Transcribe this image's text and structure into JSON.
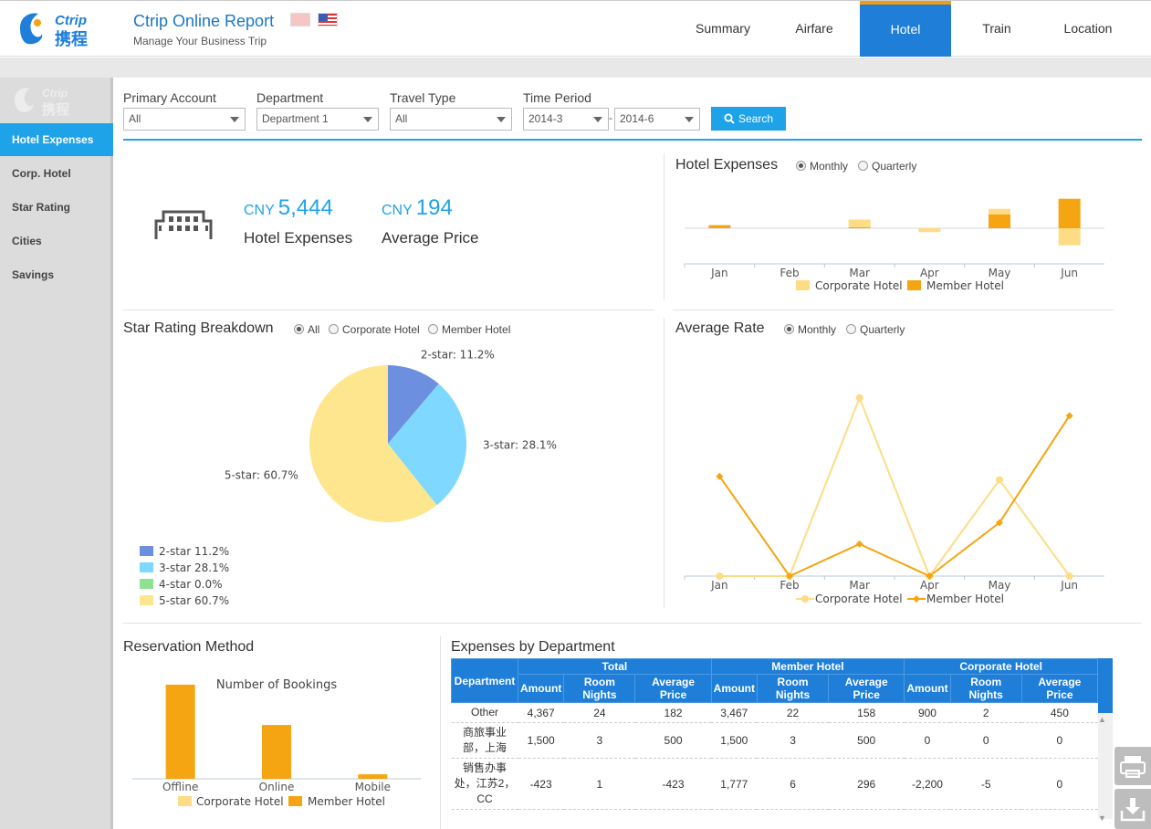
{
  "header": {
    "logo_text": "Ctrip 携程",
    "title": "Ctrip Online Report",
    "subtitle": "Manage Your Business Trip",
    "nav": [
      "Summary",
      "Airfare",
      "Hotel",
      "Train",
      "Location"
    ],
    "active_nav": "Hotel"
  },
  "sidebar": {
    "items": [
      "Hotel Expenses",
      "Corp. Hotel",
      "Star Rating",
      "Cities",
      "Savings"
    ],
    "active": "Hotel Expenses"
  },
  "filters": {
    "primary_account": {
      "label": "Primary Account",
      "value": "All"
    },
    "department": {
      "label": "Department",
      "value": "Department 1"
    },
    "travel_type": {
      "label": "Travel Type",
      "value": "All"
    },
    "time_period": {
      "label": "Time Period",
      "from": "2014-3",
      "to": "2014-6",
      "separator": "-"
    },
    "search_label": "Search"
  },
  "kpi": {
    "expenses": {
      "currency": "CNY",
      "value": "5,444",
      "label": "Hotel Expenses"
    },
    "avg_price": {
      "currency": "CNY",
      "value": "194",
      "label": "Average Price"
    }
  },
  "hotel_expenses": {
    "title": "Hotel Expenses",
    "options": [
      "Monthly",
      "Quarterly"
    ],
    "selected": "Monthly"
  },
  "star_rating": {
    "title": "Star Rating Breakdown",
    "options": [
      "All",
      "Corporate Hotel",
      "Member Hotel"
    ],
    "selected": "All"
  },
  "average_rate": {
    "title": "Average Rate",
    "options": [
      "Monthly",
      "Quarterly"
    ],
    "selected": "Monthly"
  },
  "reservation": {
    "title": "Reservation Method"
  },
  "expenses_by_dept": {
    "title": "Expenses by Department",
    "group_headers": [
      "Department",
      "Total",
      "Member Hotel",
      "Corporate Hotel"
    ],
    "sub_headers": [
      "Amount",
      "Room Nights",
      "Average Price",
      "Amount",
      "Room Nights",
      "Average Price",
      "Amount",
      "Room Nights",
      "Average Price"
    ],
    "rows": [
      [
        "Other",
        "4,367",
        "24",
        "182",
        "3,467",
        "22",
        "158",
        "900",
        "2",
        "450"
      ],
      [
        "商旅事业部，上海",
        "1,500",
        "3",
        "500",
        "1,500",
        "3",
        "500",
        "0",
        "0",
        "0"
      ],
      [
        "销售办事处，江苏2，CC",
        "-423",
        "1",
        "-423",
        "1,777",
        "6",
        "296",
        "-2,200",
        "-5",
        "0"
      ]
    ]
  },
  "colors": {
    "accent": "#1fa3e8",
    "nav_active": "#1e7ed8",
    "corporate": "#fddc85",
    "member": "#f5a511"
  },
  "chart_data": [
    {
      "id": "hotel-expenses-monthly",
      "type": "bar",
      "stacked": true,
      "categories": [
        "Jan",
        "Feb",
        "Mar",
        "Apr",
        "May",
        "Jun"
      ],
      "series": [
        {
          "name": "Corporate Hotel",
          "values": [
            0,
            0,
            500,
            -250,
            350,
            -1100
          ]
        },
        {
          "name": "Member Hotel",
          "values": [
            200,
            0,
            60,
            0,
            900,
            1900
          ]
        }
      ],
      "legend": "bottom"
    },
    {
      "id": "star-rating",
      "type": "pie",
      "labels": [
        "2-star",
        "3-star",
        "4-star",
        "5-star"
      ],
      "values": [
        11.2,
        28.1,
        0.0,
        60.7
      ],
      "slice_labels": [
        "2-star: 11.2%",
        "3-star: 28.1%",
        "4-star: 0.0%",
        "5-star: 60.7%"
      ],
      "legend_labels": [
        "2-star 11.2%",
        "3-star 28.1%",
        "4-star 0.0%",
        "5-star 60.7%"
      ],
      "colors": [
        "#6d8fe0",
        "#7fd8ff",
        "#8fe08f",
        "#fde68d"
      ]
    },
    {
      "id": "average-rate",
      "type": "line",
      "categories": [
        "Jan",
        "Feb",
        "Mar",
        "Apr",
        "May",
        "Jun"
      ],
      "series": [
        {
          "name": "Corporate Hotel",
          "values": [
            0,
            0,
            500,
            0,
            270,
            0
          ]
        },
        {
          "name": "Member Hotel",
          "values": [
            280,
            0,
            90,
            0,
            150,
            450
          ]
        }
      ],
      "ylim": [
        0,
        520
      ],
      "legend": "bottom"
    },
    {
      "id": "reservation-method",
      "type": "bar",
      "title": "Number of Bookings",
      "categories": [
        "Offline",
        "Online",
        "Mobile"
      ],
      "series": [
        {
          "name": "Corporate Hotel",
          "values": [
            0,
            0,
            0
          ]
        },
        {
          "name": "Member Hotel",
          "values": [
            21,
            12,
            1
          ]
        }
      ],
      "ylim": [
        0,
        22
      ],
      "legend": "bottom"
    }
  ]
}
